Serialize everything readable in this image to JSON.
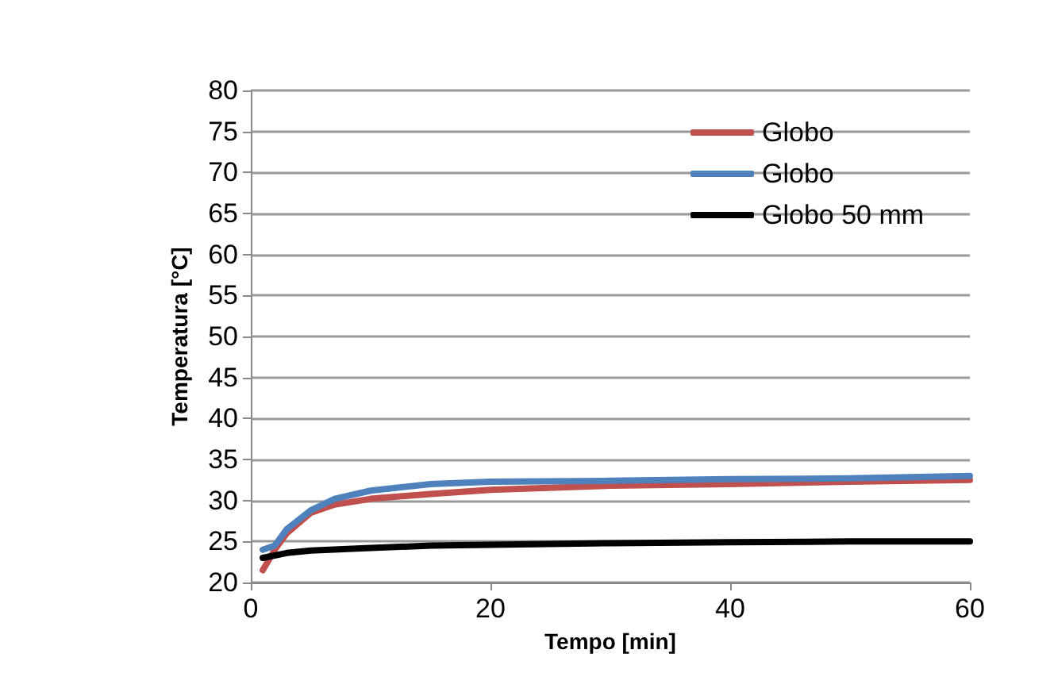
{
  "chart_data": {
    "type": "line",
    "xlabel": "Tempo [min]",
    "ylabel": "Temperatura [°C]",
    "xlim": [
      0,
      60
    ],
    "xticks": [
      0,
      20,
      40,
      60
    ],
    "ylim": [
      20,
      80
    ],
    "yticks": [
      20,
      25,
      30,
      35,
      40,
      45,
      50,
      55,
      60,
      65,
      70,
      75,
      80
    ],
    "grid": "y",
    "legend": "top right",
    "marker": "none",
    "line_style": "solid",
    "series": [
      {
        "name": "Globo",
        "color": "#c0504d",
        "x": [
          1,
          2,
          3,
          5,
          7,
          10,
          15,
          20,
          30,
          40,
          50,
          60
        ],
        "values": [
          21.5,
          24,
          26,
          28.5,
          29.5,
          30.2,
          30.8,
          31.3,
          31.8,
          32,
          32.3,
          32.5
        ]
      },
      {
        "name": "Globo",
        "color": "#4f81bd",
        "x": [
          1,
          2,
          3,
          5,
          7,
          10,
          15,
          20,
          30,
          40,
          50,
          60
        ],
        "values": [
          24,
          24.5,
          26.5,
          28.8,
          30.2,
          31.2,
          32,
          32.3,
          32.4,
          32.6,
          32.7,
          33
        ]
      },
      {
        "name": "Globo 50 mm",
        "color": "#000000",
        "x": [
          1,
          3,
          5,
          10,
          15,
          20,
          30,
          40,
          50,
          60
        ],
        "values": [
          23,
          23.6,
          23.9,
          24.2,
          24.5,
          24.6,
          24.8,
          24.9,
          25,
          25
        ]
      }
    ]
  }
}
